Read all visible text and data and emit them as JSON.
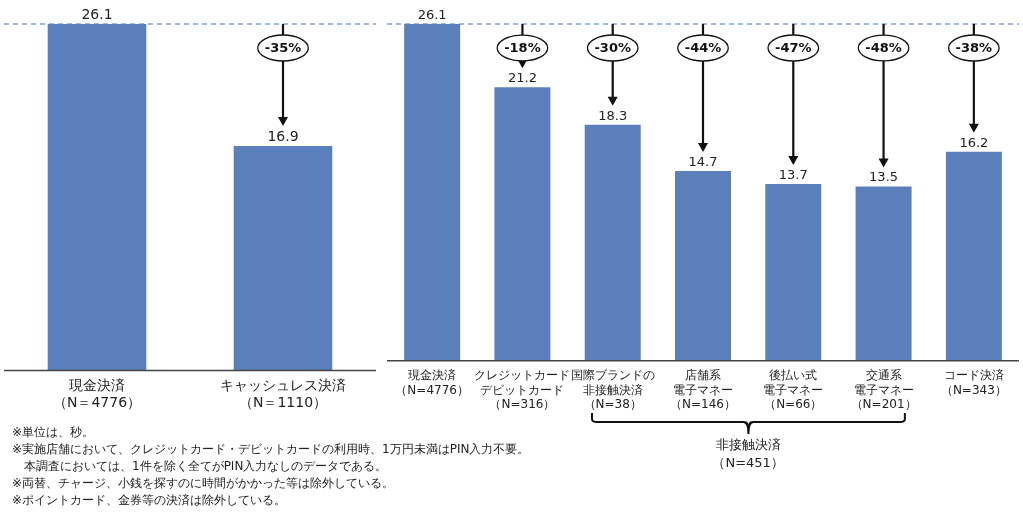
{
  "chart_data": [
    {
      "type": "bar",
      "categories": [
        "現金決済（N＝4776）",
        "キャッシュレス決済（N＝1110）"
      ],
      "values": [
        26.1,
        16.9
      ],
      "color": "#5b7fba",
      "data_labels": true,
      "tick_labels": "x",
      "ref_lines": [
        {
          "axis": "y",
          "value": 26.1,
          "color": "#4a6fb5",
          "line_style": "dashed"
        }
      ],
      "annotations": [
        {
          "text": "-35%",
          "x": "キャッシュレス決済（N＝1110）",
          "y": 26.1
        },
        "※単位は、秒。",
        "※実施店舗において、クレジットカード・デビットカードの利用時、1万円未満はPIN入力不要。",
        "　本調査においては、1件を除く全てがPIN入力なしのデータである。",
        "※両替、チャージ、小銭を探すのに時間がかかった等は除外している。",
        "※ポイントカード、金券等の決済は除外している。"
      ]
    },
    {
      "type": "bar",
      "categories": [
        "現金決済（N=4776）",
        "クレジットカードデビットカード（N=316）",
        "国際ブランドの非接触決済（N=38）",
        "店舗系電子マネー（N=146）",
        "後払い式電子マネー（N=66）",
        "交通系電子マネー（N=201）",
        "コード決済（N=343）"
      ],
      "values": [
        26.1,
        21.2,
        18.3,
        14.7,
        13.7,
        13.5,
        16.2
      ],
      "color": "#5b7fba",
      "data_labels": true,
      "tick_labels": "x",
      "ref_lines": [
        {
          "axis": "y",
          "value": 26.1,
          "color": "#4a6fb5",
          "line_style": "dashed"
        }
      ],
      "annotations": [
        {
          "text": "-18%",
          "x": "クレジットカードデビットカード（N=316）",
          "y": 26.1
        },
        {
          "text": "-30%",
          "x": "国際ブランドの非接触決済（N=38）",
          "y": 26.1
        },
        {
          "text": "-44%",
          "x": "店舗系電子マネー（N=146）",
          "y": 26.1
        },
        {
          "text": "-47%",
          "x": "後払い式電子マネー（N=66）",
          "y": 26.1
        },
        {
          "text": "-48%",
          "x": "交通系電子マネー（N=201）",
          "y": 26.1
        },
        {
          "text": "-38%",
          "x": "コード決済（N=343）",
          "y": 26.1
        },
        "非接触決済（N=451）"
      ]
    }
  ]
}
